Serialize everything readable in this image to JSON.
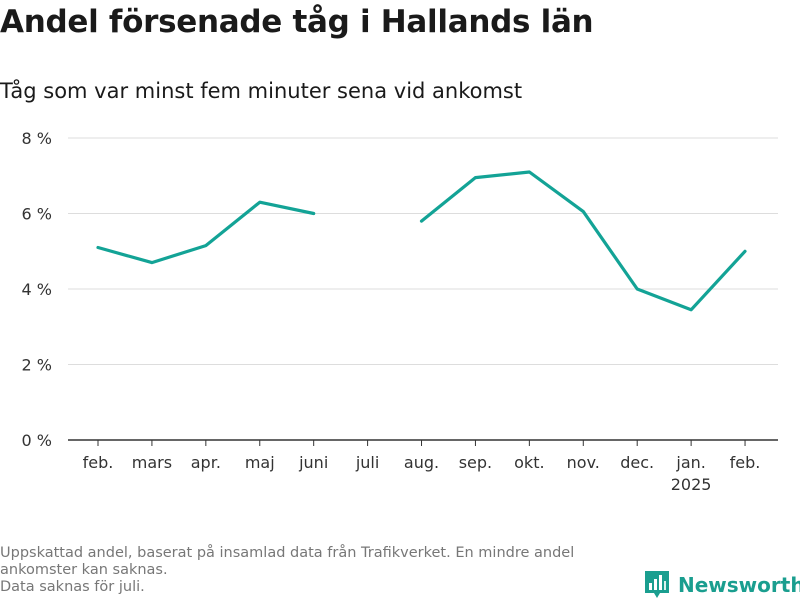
{
  "header": {
    "title": "Andel försenade tåg i Hallands län",
    "subtitle": "Tåg som var minst fem minuter sena vid ankomst"
  },
  "footnote": {
    "lines": [
      "Uppskattad andel, baserat på insamlad data från Trafikverket. En mindre andel",
      "ankomster kan saknas.",
      "Data saknas för juli."
    ]
  },
  "brand": {
    "name": "Newsworthy",
    "color": "#1a9e8f"
  },
  "chart_data": {
    "type": "line",
    "categories": [
      "feb.",
      "mars",
      "apr.",
      "maj",
      "juni",
      "juli",
      "aug.",
      "sep.",
      "okt.",
      "nov.",
      "dec.",
      "jan.",
      "feb."
    ],
    "category_sublabels": [
      "",
      "",
      "",
      "",
      "",
      "",
      "",
      "",
      "",
      "",
      "",
      "2025",
      ""
    ],
    "series": [
      {
        "values": [
          5.1,
          4.7,
          5.15,
          6.3,
          6.0,
          null,
          5.8,
          6.95,
          7.1,
          6.05,
          4.0,
          3.45,
          5.0
        ]
      }
    ],
    "ylim": [
      0,
      8
    ],
    "yticks": [
      0,
      2,
      4,
      6,
      8
    ],
    "ytick_labels": [
      "0 %",
      "2 %",
      "4 %",
      "6 %",
      "8 %"
    ],
    "grid": true,
    "line_color": "#13a396"
  }
}
